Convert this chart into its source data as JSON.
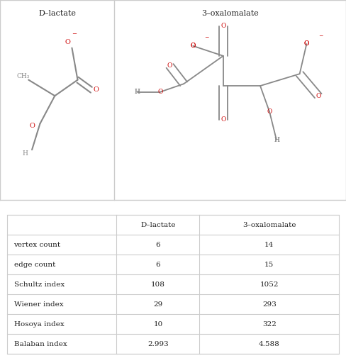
{
  "title_left": "D–lactate",
  "title_right": "3–oxalomalate",
  "table_headers": [
    "",
    "D–lactate",
    "3–oxalomalate"
  ],
  "table_rows": [
    [
      "vertex count",
      "6",
      "14"
    ],
    [
      "edge count",
      "6",
      "15"
    ],
    [
      "Schultz index",
      "108",
      "1052"
    ],
    [
      "Wiener index",
      "29",
      "293"
    ],
    [
      "Hosoya index",
      "10",
      "322"
    ],
    [
      "Balaban index",
      "2.993",
      "4.588"
    ]
  ],
  "bg_color": "#ffffff",
  "border_color": "#cccccc",
  "text_color": "#222222",
  "atom_color_C": "#888888",
  "atom_color_O": "#cc0000",
  "atom_color_H": "#888888",
  "bond_color": "#888888",
  "header_bg": "#ffffff"
}
